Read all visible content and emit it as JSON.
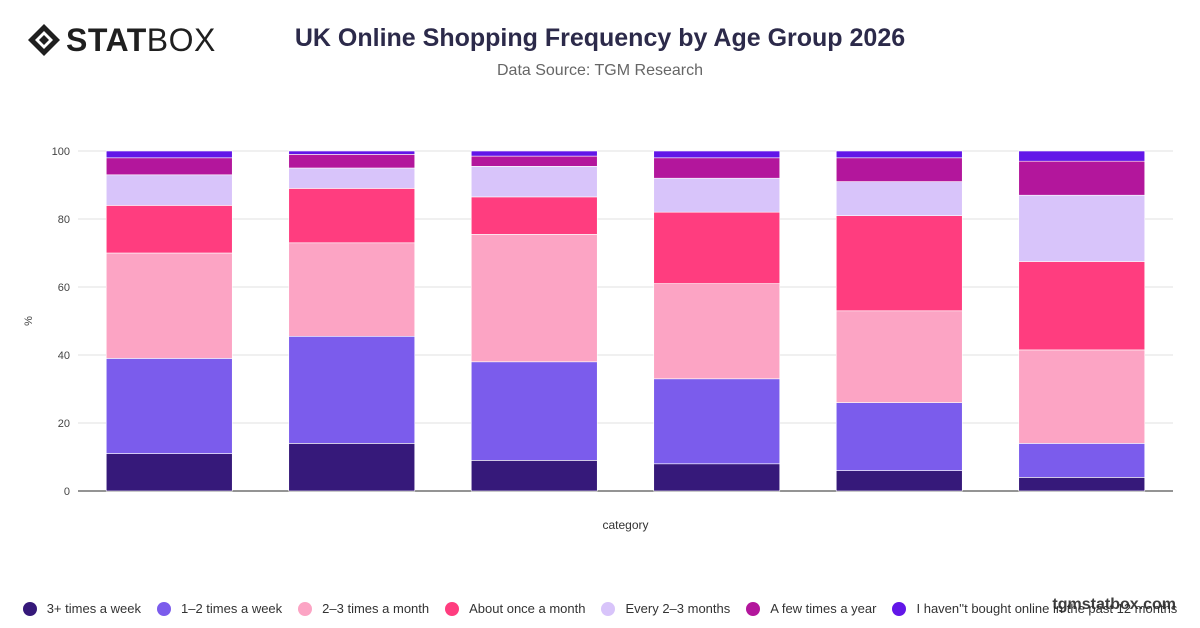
{
  "brand": {
    "name_bold": "STAT",
    "name_light": "BOX"
  },
  "title": "UK Online Shopping Frequency by Age Group 2026",
  "subtitle": "Data Source: TGM Research",
  "watermark": "tgmstatbox.com",
  "chart_data": {
    "type": "bar",
    "stacked": true,
    "categories": [
      "",
      "",
      "",
      "",
      "",
      ""
    ],
    "xlabel": "category",
    "ylabel": "%",
    "ylim": [
      0,
      100
    ],
    "yticks": [
      0,
      20,
      40,
      60,
      80,
      100
    ],
    "grid": true,
    "legend_position": "bottom",
    "series": [
      {
        "name": "3+ times a week",
        "color": "#36197a",
        "values": [
          11,
          14,
          9,
          8,
          6,
          4
        ]
      },
      {
        "name": "1–2 times a week",
        "color": "#7b5cec",
        "values": [
          28,
          31.5,
          29,
          25,
          20,
          10
        ]
      },
      {
        "name": "2–3 times a month",
        "color": "#fca4c4",
        "values": [
          31,
          27.5,
          37.5,
          28,
          27,
          27.5
        ]
      },
      {
        "name": "About once a month",
        "color": "#ff3d7f",
        "values": [
          14,
          16,
          11,
          21,
          28,
          26
        ]
      },
      {
        "name": "Every 2–3 months",
        "color": "#d8c4fa",
        "values": [
          9,
          6,
          9,
          10,
          10,
          19.5
        ]
      },
      {
        "name": "A few times a year",
        "color": "#b3169c",
        "values": [
          5,
          4,
          3,
          6,
          7,
          10
        ]
      },
      {
        "name": "I haven''t bought online in the past 12 months",
        "color": "#6216e8",
        "values": [
          2,
          1,
          1.5,
          2,
          2,
          3
        ]
      }
    ]
  }
}
